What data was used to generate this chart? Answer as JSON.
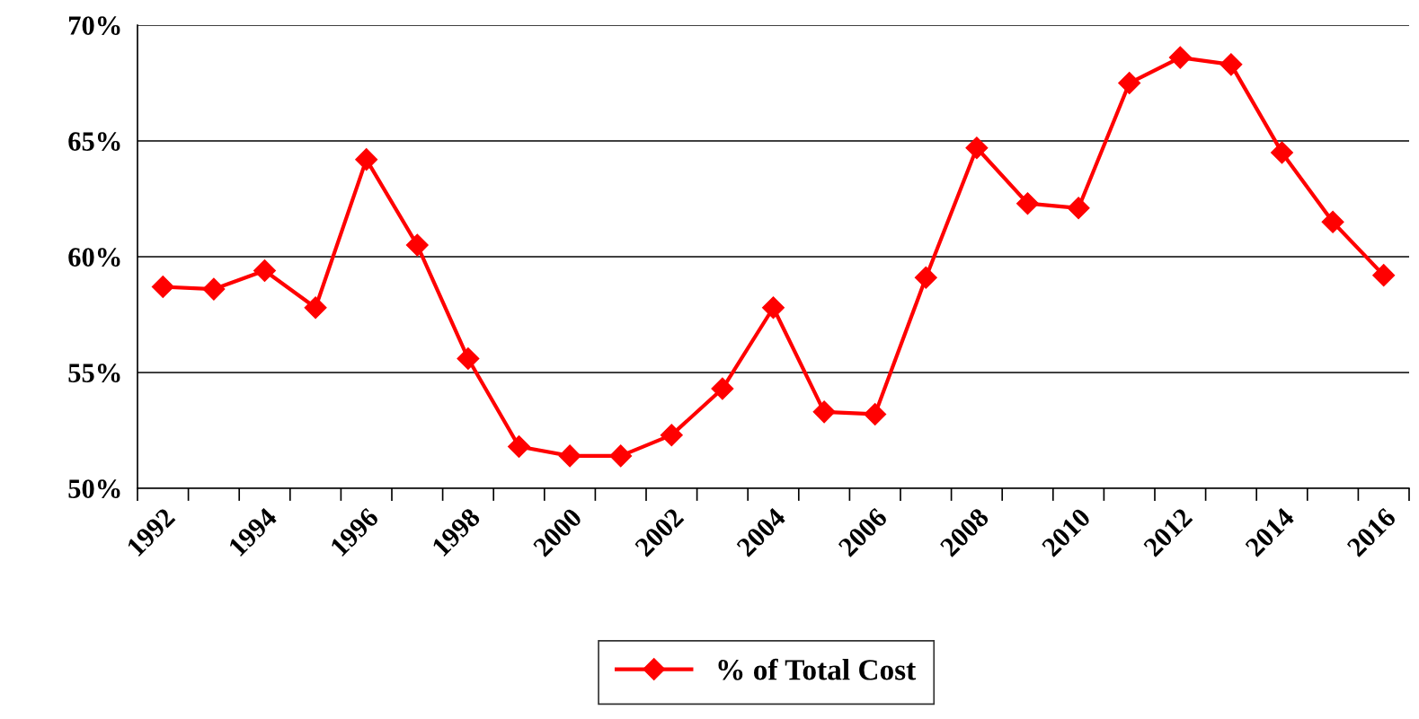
{
  "chart_data": {
    "type": "line",
    "categories": [
      "1992",
      null,
      "1994",
      null,
      "1996",
      null,
      "1998",
      null,
      "2000",
      null,
      "2002",
      null,
      "2004",
      null,
      "2006",
      null,
      "2008",
      null,
      "2010",
      null,
      "2012",
      null,
      "2014",
      null,
      "2016"
    ],
    "series": [
      {
        "name": "% of Total Cost",
        "color": "#ff0000",
        "values": [
          58.7,
          58.6,
          59.4,
          57.8,
          64.2,
          60.5,
          55.6,
          51.8,
          51.4,
          51.4,
          52.3,
          54.3,
          57.8,
          53.3,
          53.2,
          59.1,
          64.7,
          62.3,
          62.1,
          67.5,
          68.6,
          68.3,
          64.5,
          61.5,
          59.2
        ]
      }
    ],
    "ylim": [
      50,
      70
    ],
    "yticks": [
      {
        "value": 50,
        "label": "50%"
      },
      {
        "value": 55,
        "label": "55%"
      },
      {
        "value": 60,
        "label": "60%"
      },
      {
        "value": 65,
        "label": "65%"
      },
      {
        "value": 70,
        "label": "70%"
      }
    ],
    "grid": "y",
    "legend": "bottom",
    "marker": "diamond",
    "line_style": "solid"
  }
}
